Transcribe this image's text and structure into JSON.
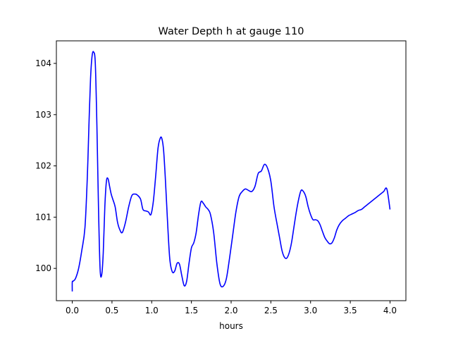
{
  "chart_data": {
    "type": "line",
    "title": "Water Depth h at gauge 110",
    "xlabel": "hours",
    "ylabel": "",
    "xlim": [
      -0.2,
      4.2
    ],
    "ylim": [
      99.37,
      104.44
    ],
    "grid": false,
    "x_ticks": [
      0.0,
      0.5,
      1.0,
      1.5,
      2.0,
      2.5,
      3.0,
      3.5,
      4.0
    ],
    "x_tick_labels": [
      "0.0",
      "0.5",
      "1.0",
      "1.5",
      "2.0",
      "2.5",
      "3.0",
      "3.5",
      "4.0"
    ],
    "y_ticks": [
      100,
      101,
      102,
      103,
      104
    ],
    "y_tick_labels": [
      "100",
      "101",
      "102",
      "103",
      "104"
    ],
    "series": [
      {
        "color": "#0000ff",
        "x": [
          0.0,
          0.0,
          0.01,
          0.04,
          0.08,
          0.12,
          0.16,
          0.19,
          0.21,
          0.23,
          0.25,
          0.27,
          0.29,
          0.31,
          0.33,
          0.35,
          0.37,
          0.39,
          0.41,
          0.43,
          0.45,
          0.47,
          0.49,
          0.51,
          0.54,
          0.57,
          0.6,
          0.63,
          0.67,
          0.71,
          0.75,
          0.79,
          0.82,
          0.86,
          0.89,
          0.93,
          0.96,
          0.99,
          1.02,
          1.05,
          1.08,
          1.11,
          1.13,
          1.15,
          1.17,
          1.19,
          1.21,
          1.23,
          1.26,
          1.29,
          1.32,
          1.35,
          1.38,
          1.41,
          1.44,
          1.47,
          1.5,
          1.53,
          1.56,
          1.59,
          1.62,
          1.65,
          1.68,
          1.71,
          1.74,
          1.78,
          1.82,
          1.86,
          1.9,
          1.94,
          1.98,
          2.02,
          2.06,
          2.1,
          2.14,
          2.18,
          2.22,
          2.26,
          2.3,
          2.34,
          2.38,
          2.42,
          2.46,
          2.5,
          2.54,
          2.58,
          2.61,
          2.64,
          2.67,
          2.7,
          2.73,
          2.76,
          2.79,
          2.82,
          2.85,
          2.88,
          2.91,
          2.94,
          2.97,
          3.0,
          3.03,
          3.06,
          3.09,
          3.12,
          3.15,
          3.18,
          3.21,
          3.24,
          3.27,
          3.3,
          3.33,
          3.36,
          3.4,
          3.44,
          3.48,
          3.52,
          3.56,
          3.6,
          3.64,
          3.68,
          3.72,
          3.76,
          3.8,
          3.84,
          3.88,
          3.92,
          3.96,
          4.0
        ],
        "values": [
          99.55,
          99.73,
          99.75,
          99.8,
          100.0,
          100.35,
          100.8,
          101.8,
          102.8,
          103.7,
          104.15,
          104.22,
          104.0,
          102.8,
          101.2,
          100.0,
          99.87,
          100.3,
          101.2,
          101.7,
          101.75,
          101.6,
          101.45,
          101.35,
          101.2,
          100.9,
          100.75,
          100.7,
          100.9,
          101.2,
          101.42,
          101.45,
          101.43,
          101.35,
          101.15,
          101.12,
          101.1,
          101.05,
          101.3,
          101.8,
          102.35,
          102.55,
          102.52,
          102.3,
          101.8,
          101.2,
          100.6,
          100.15,
          99.93,
          99.95,
          100.1,
          100.08,
          99.85,
          99.66,
          99.75,
          100.1,
          100.4,
          100.5,
          100.7,
          101.05,
          101.3,
          101.27,
          101.2,
          101.15,
          101.05,
          100.7,
          100.1,
          99.7,
          99.65,
          99.8,
          100.2,
          100.65,
          101.1,
          101.4,
          101.5,
          101.55,
          101.52,
          101.5,
          101.6,
          101.85,
          101.9,
          102.03,
          101.95,
          101.7,
          101.2,
          100.85,
          100.6,
          100.35,
          100.22,
          100.2,
          100.3,
          100.5,
          100.8,
          101.1,
          101.35,
          101.52,
          101.5,
          101.4,
          101.2,
          101.05,
          100.95,
          100.95,
          100.93,
          100.85,
          100.72,
          100.6,
          100.53,
          100.48,
          100.5,
          100.6,
          100.75,
          100.85,
          100.93,
          100.98,
          101.03,
          101.06,
          101.09,
          101.13,
          101.15,
          101.2,
          101.25,
          101.3,
          101.35,
          101.4,
          101.45,
          101.5,
          101.55,
          101.15
        ]
      }
    ]
  }
}
